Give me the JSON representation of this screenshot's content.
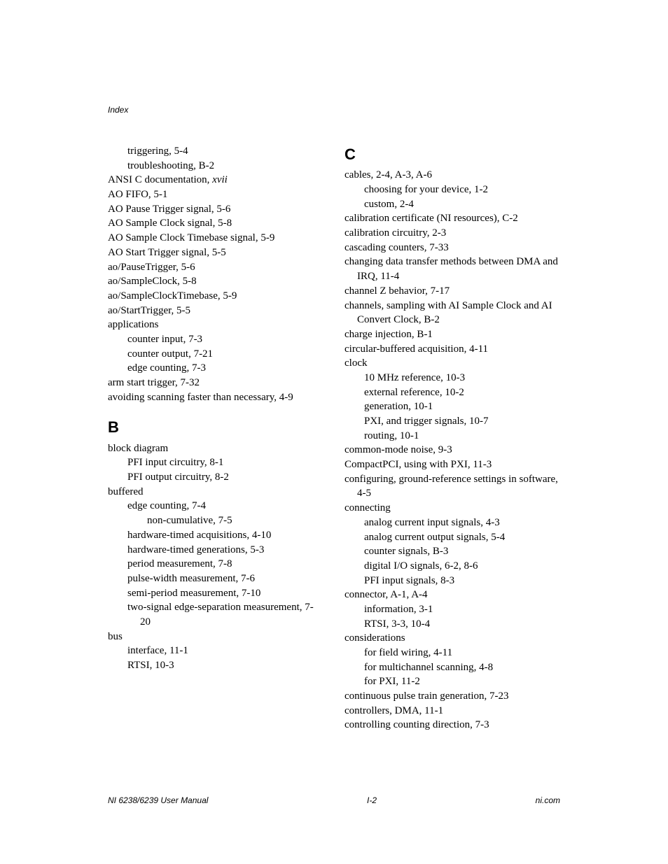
{
  "header": "Index",
  "footer": {
    "left": "NI 6238/6239 User Manual",
    "center": "I-2",
    "right": "ni.com"
  },
  "sections": {
    "left_intro": [
      {
        "lvl": 1,
        "t": "triggering, 5-4"
      },
      {
        "lvl": 1,
        "t": "troubleshooting, B-2"
      },
      {
        "lvl": 0,
        "html": "ANSI C documentation, <span class=\"ital\">xvii</span>"
      },
      {
        "lvl": 0,
        "t": "AO FIFO, 5-1"
      },
      {
        "lvl": 0,
        "t": "AO Pause Trigger signal, 5-6"
      },
      {
        "lvl": 0,
        "t": "AO Sample Clock signal, 5-8"
      },
      {
        "lvl": 0,
        "t": "AO Sample Clock Timebase signal, 5-9"
      },
      {
        "lvl": 0,
        "t": "AO Start Trigger signal, 5-5"
      },
      {
        "lvl": 0,
        "t": "ao/PauseTrigger, 5-6"
      },
      {
        "lvl": 0,
        "t": "ao/SampleClock, 5-8"
      },
      {
        "lvl": 0,
        "t": "ao/SampleClockTimebase, 5-9"
      },
      {
        "lvl": 0,
        "t": "ao/StartTrigger, 5-5"
      },
      {
        "lvl": 0,
        "t": "applications"
      },
      {
        "lvl": 1,
        "t": "counter input, 7-3"
      },
      {
        "lvl": 1,
        "t": "counter output, 7-21"
      },
      {
        "lvl": 1,
        "t": "edge counting, 7-3"
      },
      {
        "lvl": 0,
        "t": "arm start trigger, 7-32"
      },
      {
        "lvl": 0,
        "t": "avoiding scanning faster than necessary, 4-9"
      }
    ],
    "B": [
      {
        "lvl": 0,
        "t": "block diagram"
      },
      {
        "lvl": 1,
        "t": "PFI input circuitry, 8-1"
      },
      {
        "lvl": 1,
        "t": "PFI output circuitry, 8-2"
      },
      {
        "lvl": 0,
        "t": "buffered"
      },
      {
        "lvl": 1,
        "t": "edge counting, 7-4"
      },
      {
        "lvl": 2,
        "t": "non-cumulative, 7-5"
      },
      {
        "lvl": 1,
        "t": "hardware-timed acquisitions, 4-10"
      },
      {
        "lvl": 1,
        "t": "hardware-timed generations, 5-3"
      },
      {
        "lvl": 1,
        "t": "period measurement, 7-8"
      },
      {
        "lvl": 1,
        "t": "pulse-width measurement, 7-6"
      },
      {
        "lvl": 1,
        "t": "semi-period measurement, 7-10"
      },
      {
        "lvl": 1,
        "hang": true,
        "t": "two-signal edge-separation measurement, 7-20"
      },
      {
        "lvl": 0,
        "t": "bus"
      },
      {
        "lvl": 1,
        "t": "interface, 11-1"
      },
      {
        "lvl": 1,
        "t": "RTSI, 10-3"
      }
    ],
    "C": [
      {
        "lvl": 0,
        "t": "cables, 2-4, A-3, A-6"
      },
      {
        "lvl": 1,
        "t": "choosing for your device, 1-2"
      },
      {
        "lvl": 1,
        "t": "custom, 2-4"
      },
      {
        "lvl": 0,
        "t": "calibration certificate (NI resources), C-2"
      },
      {
        "lvl": 0,
        "t": "calibration circuitry, 2-3"
      },
      {
        "lvl": 0,
        "t": "cascading counters, 7-33"
      },
      {
        "lvl": 0,
        "hang": true,
        "t": "changing data transfer methods between DMA and IRQ, 11-4"
      },
      {
        "lvl": 0,
        "t": "channel Z behavior, 7-17"
      },
      {
        "lvl": 0,
        "hang": true,
        "t": "channels, sampling with AI Sample Clock and AI Convert Clock, B-2"
      },
      {
        "lvl": 0,
        "t": "charge injection, B-1"
      },
      {
        "lvl": 0,
        "t": "circular-buffered acquisition, 4-11"
      },
      {
        "lvl": 0,
        "t": "clock"
      },
      {
        "lvl": 1,
        "t": "10 MHz reference, 10-3"
      },
      {
        "lvl": 1,
        "t": "external reference, 10-2"
      },
      {
        "lvl": 1,
        "t": "generation, 10-1"
      },
      {
        "lvl": 1,
        "t": "PXI, and trigger signals, 10-7"
      },
      {
        "lvl": 1,
        "t": "routing, 10-1"
      },
      {
        "lvl": 0,
        "t": "common-mode noise, 9-3"
      },
      {
        "lvl": 0,
        "t": "CompactPCI, using with PXI, 11-3"
      },
      {
        "lvl": 0,
        "hang": true,
        "t": "configuring, ground-reference settings in software, 4-5"
      },
      {
        "lvl": 0,
        "t": "connecting"
      },
      {
        "lvl": 1,
        "t": "analog current input signals, 4-3"
      },
      {
        "lvl": 1,
        "t": "analog current output signals, 5-4"
      },
      {
        "lvl": 1,
        "t": "counter signals, B-3"
      },
      {
        "lvl": 1,
        "t": "digital I/O signals, 6-2, 8-6"
      },
      {
        "lvl": 1,
        "t": "PFI input signals, 8-3"
      },
      {
        "lvl": 0,
        "t": "connector, A-1, A-4"
      },
      {
        "lvl": 1,
        "t": "information, 3-1"
      },
      {
        "lvl": 1,
        "t": "RTSI, 3-3, 10-4"
      },
      {
        "lvl": 0,
        "t": "considerations"
      },
      {
        "lvl": 1,
        "t": "for field wiring, 4-11"
      },
      {
        "lvl": 1,
        "t": "for multichannel scanning, 4-8"
      },
      {
        "lvl": 1,
        "t": "for PXI, 11-2"
      },
      {
        "lvl": 0,
        "t": "continuous pulse train generation, 7-23"
      },
      {
        "lvl": 0,
        "t": "controllers, DMA, 11-1"
      },
      {
        "lvl": 0,
        "t": "controlling counting direction, 7-3"
      }
    ]
  },
  "letters": {
    "B": "B",
    "C": "C"
  }
}
